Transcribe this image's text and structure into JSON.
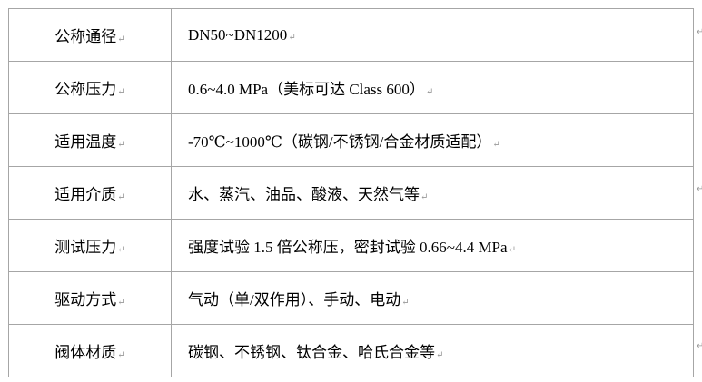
{
  "rows": [
    {
      "label": "公称通径",
      "value": "DN50~DN1200"
    },
    {
      "label": "公称压力",
      "value": "0.6~4.0 MPa（美标可达 Class 600）"
    },
    {
      "label": "适用温度",
      "value": "-70℃~1000℃（碳钢/不锈钢/合金材质适配）"
    },
    {
      "label": "适用介质",
      "value": "水、蒸汽、油品、酸液、天然气等"
    },
    {
      "label": "测试压力",
      "value": "强度试验 1.5 倍公称压，密封试验 0.66~4.4 MPa"
    },
    {
      "label": "驱动方式",
      "value": "气动（单/双作用）、手动、电动"
    },
    {
      "label": "阀体材质",
      "value": "碳钢、不锈钢、钛合金、哈氏合金等"
    }
  ]
}
